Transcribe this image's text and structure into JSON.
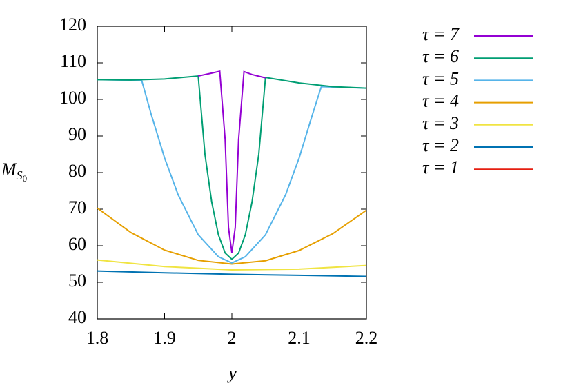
{
  "chart_data": {
    "type": "line",
    "x_label": "y",
    "y_label": "M",
    "y_label_sub": "S",
    "y_label_subsub": "0",
    "xlim": [
      1.8,
      2.2
    ],
    "xticks": [
      {
        "value": 1.8,
        "label": "1.8"
      },
      {
        "value": 1.9,
        "label": "1.9"
      },
      2,
      {
        "value": 2.1,
        "label": "2.1"
      },
      {
        "value": 2.2,
        "label": "2.2"
      }
    ],
    "ylim": [
      40,
      120
    ],
    "yticks": [
      40,
      50,
      60,
      70,
      80,
      90,
      100,
      110,
      120
    ],
    "grid": false,
    "legend": "right",
    "series": [
      {
        "name": "τ = 7",
        "color": "#9400d3",
        "x": [
          1.95,
          1.97,
          1.982,
          1.99,
          1.995,
          2.0,
          2.005,
          2.01,
          2.018,
          2.03,
          2.05
        ],
        "values": [
          106.4,
          107.2,
          107.7,
          89,
          65,
          58.1,
          65,
          89,
          107.6,
          106.8,
          105.9
        ]
      },
      {
        "name": "τ = 6",
        "color": "#009e73",
        "x": [
          1.8,
          1.85,
          1.9,
          1.95,
          1.96,
          1.97,
          1.98,
          1.99,
          2.0,
          2.01,
          2.02,
          2.03,
          2.04,
          2.05,
          2.1,
          2.15,
          2.2
        ],
        "values": [
          105.4,
          105.3,
          105.6,
          106.4,
          85,
          72,
          63,
          58,
          56.3,
          58,
          63,
          72,
          85,
          106,
          104.5,
          103.5,
          103.1
        ]
      },
      {
        "name": "τ = 5",
        "color": "#56b4e9",
        "x": [
          1.8,
          1.866,
          1.88,
          1.9,
          1.92,
          1.95,
          1.98,
          2.0,
          2.02,
          2.05,
          2.08,
          2.1,
          2.12,
          2.133,
          2.2
        ],
        "values": [
          105.4,
          105.2,
          96,
          84,
          74,
          63,
          57,
          55.3,
          57,
          63,
          74,
          84,
          96,
          103.5,
          103.1
        ]
      },
      {
        "name": "τ = 4",
        "color": "#e69f00",
        "x": [
          1.8,
          1.85,
          1.9,
          1.95,
          2.0,
          2.05,
          2.1,
          2.15,
          2.2
        ],
        "values": [
          70.3,
          63.6,
          58.8,
          56.0,
          55.0,
          55.9,
          58.7,
          63.3,
          69.7
        ]
      },
      {
        "name": "τ = 3",
        "color": "#f0e442",
        "x": [
          1.8,
          1.9,
          2.0,
          2.1,
          2.2
        ],
        "values": [
          56.1,
          54.3,
          53.4,
          53.6,
          54.6
        ]
      },
      {
        "name": "τ = 2",
        "color": "#0072b2",
        "x": [
          1.8,
          1.9,
          2.0,
          2.1,
          2.2
        ],
        "values": [
          53.1,
          52.6,
          52.2,
          51.9,
          51.6
        ]
      },
      {
        "name": "τ = 1",
        "color": "#e51e10",
        "x": [],
        "values": []
      }
    ]
  }
}
